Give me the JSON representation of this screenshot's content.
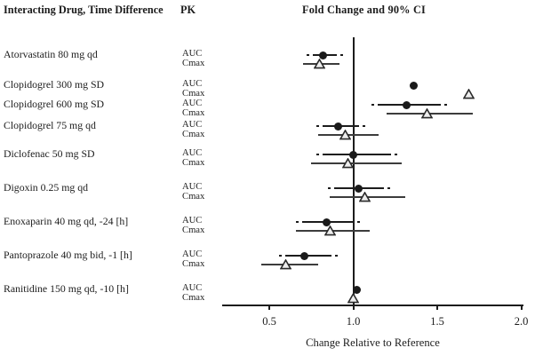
{
  "header": {
    "left_title": "Interacting Drug, Time Difference",
    "pk_title": "PK",
    "plot_title": "Fold Change and 90%  CI"
  },
  "pk_labels": {
    "auc": "AUC",
    "cmax": "Cmax"
  },
  "chart_data": {
    "type": "forest",
    "title": "Fold Change and 90% CI",
    "xlabel": "Change Relative to Reference",
    "x_ticks": [
      "0.5",
      "1.0",
      "1.5",
      "2.0"
    ],
    "x_tick_values": [
      0.5,
      1.0,
      1.5,
      2.0
    ],
    "x_range": [
      0.22,
      2.01
    ],
    "reference_line": 1.0,
    "grid": false,
    "marker_legend": {
      "auc": "filled-circle",
      "cmax": "open-triangle"
    },
    "rows": [
      {
        "drug": "Atorvastatin 80 mg qd",
        "auc": {
          "est": 0.82,
          "ci": [
            0.72,
            0.94
          ]
        },
        "cmax": {
          "est": 0.8,
          "ci": [
            0.7,
            0.92
          ]
        }
      },
      {
        "drug": "Clopidogrel 300 mg SD",
        "auc": {
          "est": 1.36,
          "ci": null
        },
        "cmax": {
          "est": 1.69,
          "ci": null
        }
      },
      {
        "drug": "Clopidogrel 600 mg SD",
        "auc": {
          "est": 1.32,
          "ci": [
            1.11,
            1.56
          ]
        },
        "cmax": {
          "est": 1.44,
          "ci": [
            1.2,
            1.71
          ]
        }
      },
      {
        "drug": "Clopidogrel 75 mg qd",
        "auc": {
          "est": 0.91,
          "ci": [
            0.78,
            1.07
          ]
        },
        "cmax": {
          "est": 0.95,
          "ci": [
            0.79,
            1.15
          ]
        }
      },
      {
        "drug": "Diclofenac 50 mg SD",
        "auc": {
          "est": 1.0,
          "ci": [
            0.78,
            1.26
          ]
        },
        "cmax": {
          "est": 0.97,
          "ci": [
            0.75,
            1.29
          ]
        }
      },
      {
        "drug": "Digoxin 0.25 mg qd",
        "auc": {
          "est": 1.03,
          "ci": [
            0.85,
            1.22
          ]
        },
        "cmax": {
          "est": 1.07,
          "ci": [
            0.86,
            1.31
          ]
        }
      },
      {
        "drug": "Enoxaparin 40 mg qd, -24 [h]",
        "auc": {
          "est": 0.84,
          "ci": [
            0.66,
            1.04
          ]
        },
        "cmax": {
          "est": 0.86,
          "ci": [
            0.66,
            1.1
          ]
        }
      },
      {
        "drug": "Pantoprazole 40 mg bid, -1 [h]",
        "auc": {
          "est": 0.71,
          "ci": [
            0.56,
            0.91
          ]
        },
        "cmax": {
          "est": 0.6,
          "ci": [
            0.45,
            0.79
          ]
        }
      },
      {
        "drug": "Ranitidine 150 mg qd, -10 [h]",
        "auc": {
          "est": 1.02,
          "ci": null
        },
        "cmax": {
          "est": 1.0,
          "ci": null
        }
      }
    ]
  }
}
